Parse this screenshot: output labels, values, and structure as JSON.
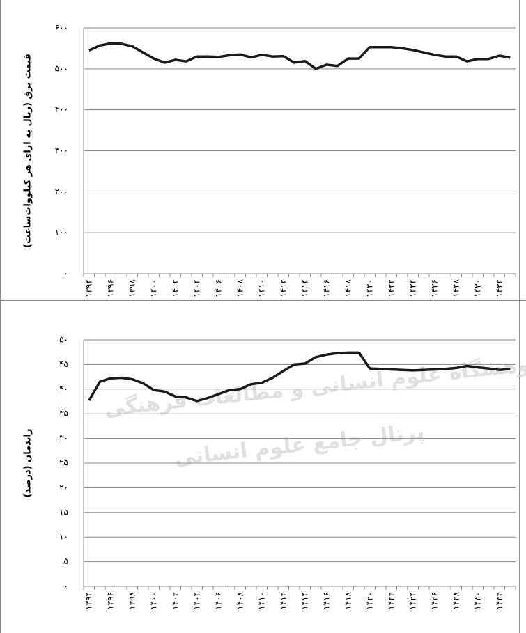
{
  "chart_data": [
    {
      "type": "line",
      "y_label": "قیمت برق (ریال به ازای هر کیلووات‌ساعت)",
      "categories": [
        "۱۳۹۴",
        null,
        "۱۳۹۶",
        null,
        "۱۳۹۸",
        null,
        "۱۴۰۰",
        null,
        "۱۴۰۲",
        null,
        "۱۴۰۴",
        null,
        "۱۴۰۶",
        null,
        "۱۴۰۸",
        null,
        "۱۴۱۰",
        null,
        "۱۴۱۲",
        null,
        "۱۴۱۴",
        null,
        "۱۴۱۶",
        null,
        "۱۴۱۸",
        null,
        "۱۴۲۰",
        null,
        "۱۴۲۲",
        null,
        "۱۴۲۴",
        null,
        "۱۴۲۶",
        null,
        "۱۴۲۸",
        null,
        "۱۴۳۰",
        null,
        "۱۴۳۲",
        null
      ],
      "values": [
        545,
        557,
        562,
        561,
        555,
        540,
        525,
        515,
        522,
        518,
        530,
        530,
        529,
        533,
        535,
        528,
        534,
        530,
        531,
        515,
        519,
        500,
        510,
        507,
        525,
        525,
        553,
        553,
        553,
        550,
        546,
        540,
        534,
        530,
        530,
        518,
        524,
        524,
        532,
        527
      ],
      "color": "#1a1a1a",
      "ylim": [
        0,
        600
      ],
      "yticks": [
        {
          "value": 0,
          "label": "۰"
        },
        {
          "value": 100,
          "label": "۱۰۰"
        },
        {
          "value": 200,
          "label": "۲۰۰"
        },
        {
          "value": 300,
          "label": "۳۰۰"
        },
        {
          "value": 400,
          "label": "۴۰۰"
        },
        {
          "value": 500,
          "label": "۵۰۰"
        },
        {
          "value": 600,
          "label": "۶۰۰"
        }
      ],
      "grid": true
    },
    {
      "type": "line",
      "y_label": "راندمان (درصد)",
      "categories": [
        "۱۳۹۴",
        null,
        "۱۳۹۶",
        null,
        "۱۳۹۸",
        null,
        "۱۴۰۰",
        null,
        "۱۴۰۲",
        null,
        "۱۴۰۴",
        null,
        "۱۴۰۶",
        null,
        "۱۴۰۸",
        null,
        "۱۴۱۰",
        null,
        "۱۴۱۲",
        null,
        "۱۴۱۴",
        null,
        "۱۴۱۶",
        null,
        "۱۴۱۸",
        null,
        "۱۴۲۰",
        null,
        "۱۴۲۲",
        null,
        "۱۴۲۴",
        null,
        "۱۴۲۶",
        null,
        "۱۴۲۸",
        null,
        "۱۴۳۰",
        null,
        "۱۴۳۲",
        null
      ],
      "values": [
        37.7,
        41.5,
        42.2,
        42.3,
        42.0,
        41.2,
        39.8,
        39.5,
        38.5,
        38.3,
        37.6,
        38.2,
        39.0,
        39.8,
        40.0,
        41.0,
        41.3,
        42.3,
        43.7,
        45.0,
        45.2,
        46.5,
        47.0,
        47.3,
        47.4,
        47.4,
        44.2,
        44.1,
        44.0,
        43.9,
        43.8,
        43.9,
        44.0,
        44.1,
        44.3,
        44.7,
        44.4,
        44.2,
        43.9,
        44.1
      ],
      "color": "#1a1a1a",
      "ylim": [
        0,
        50
      ],
      "yticks": [
        {
          "value": 0,
          "label": "۰"
        },
        {
          "value": 5,
          "label": "۵"
        },
        {
          "value": 10,
          "label": "۱۰"
        },
        {
          "value": 15,
          "label": "۱۵"
        },
        {
          "value": 20,
          "label": "۲۰"
        },
        {
          "value": 25,
          "label": "۲۵"
        },
        {
          "value": 30,
          "label": "۳۰"
        },
        {
          "value": 35,
          "label": "۳۵"
        },
        {
          "value": 40,
          "label": "۴۰"
        },
        {
          "value": 45,
          "label": "۴۵"
        },
        {
          "value": 50,
          "label": "۵۰"
        }
      ],
      "grid": true
    }
  ],
  "watermark": [
    "پژوهشگاه علوم انسانی و مطالعات فرهنگی",
    "پرتال جامع علوم انسانی"
  ]
}
